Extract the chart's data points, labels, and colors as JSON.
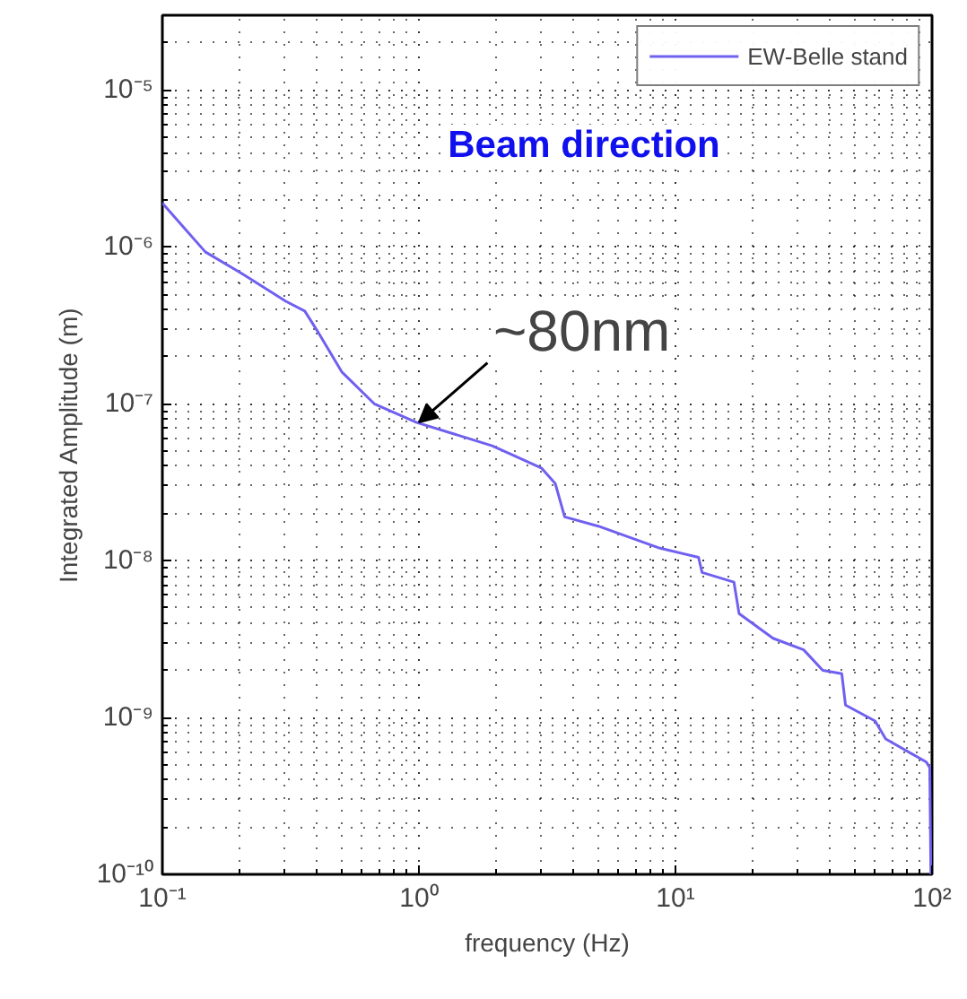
{
  "chart_data": {
    "type": "line",
    "xlabel": "frequency (Hz)",
    "ylabel": "Integrated Amplitude (m)",
    "log": "xy",
    "grid": true,
    "legend": "top right",
    "line_style": "solid",
    "marker": "none",
    "xlim": [
      0.1,
      100
    ],
    "ylim": [
      1e-10,
      3e-05
    ],
    "xticks": [
      {
        "value": 0.1,
        "label": "10⁻¹"
      },
      {
        "value": 1,
        "label": "10⁰"
      },
      {
        "value": 10,
        "label": "10¹"
      },
      {
        "value": 100,
        "label": "10²"
      }
    ],
    "yticks": [
      {
        "value": 1e-10,
        "label": "10⁻¹⁰"
      },
      {
        "value": 1e-09,
        "label": "10⁻⁹"
      },
      {
        "value": 1e-08,
        "label": "10⁻⁸"
      },
      {
        "value": 1e-07,
        "label": "10⁻⁷"
      },
      {
        "value": 1e-06,
        "label": "10⁻⁶"
      },
      {
        "value": 1e-05,
        "label": "10⁻⁵"
      }
    ],
    "series": [
      {
        "name": "EW-Belle stand",
        "color": "#7060f0",
        "x": [
          0.1,
          0.147,
          0.206,
          0.303,
          0.359,
          0.4,
          0.5,
          0.67,
          0.98,
          1.93,
          3.0,
          3.4,
          3.7,
          5.0,
          8.7,
          12.3,
          12.7,
          16.9,
          17.7,
          24,
          31.6,
          37.5,
          44.5,
          46,
          60,
          66,
          95,
          98,
          99
        ],
        "values": [
          1.9e-06,
          9.3e-07,
          6.7e-07,
          4.5e-07,
          3.9e-07,
          2.95e-07,
          1.6e-07,
          1e-07,
          7.6e-08,
          5.4e-08,
          3.9e-08,
          3.1e-08,
          1.9e-08,
          1.66e-08,
          1.2e-08,
          1.05e-08,
          8.4e-09,
          7.3e-09,
          4.6e-09,
          3.2e-09,
          2.7e-09,
          2e-09,
          1.9e-09,
          1.2e-09,
          9.5e-10,
          7.3e-10,
          5.2e-10,
          4.8e-10,
          1e-10
        ]
      }
    ],
    "annotations": [
      "Beam direction",
      {
        "text": "~80nm",
        "x": 1.0,
        "y": 7.6e-08
      }
    ]
  }
}
